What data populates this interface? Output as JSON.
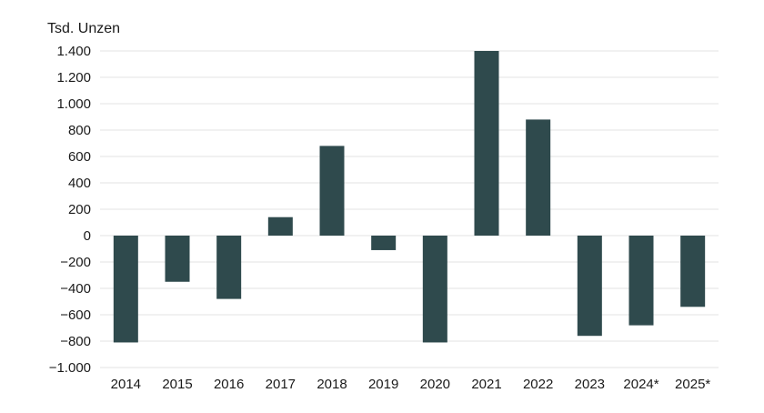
{
  "chart_data": {
    "type": "bar",
    "title": "",
    "ylabel": "Tsd. Unzen",
    "xlabel": "",
    "categories": [
      "2014",
      "2015",
      "2016",
      "2017",
      "2018",
      "2019",
      "2020",
      "2021",
      "2022",
      "2023",
      "2024*",
      "2025*"
    ],
    "values": [
      -810,
      -350,
      -480,
      140,
      680,
      -110,
      -810,
      1400,
      880,
      -760,
      -680,
      -540
    ],
    "ylim": [
      -1000,
      1400
    ],
    "yticks": [
      1400,
      1200,
      1000,
      800,
      600,
      400,
      200,
      0,
      -200,
      -400,
      -600,
      -800,
      -1000
    ],
    "ytick_labels": [
      "1.400",
      "1.200",
      "1.000",
      "800",
      "600",
      "400",
      "200",
      "0",
      "−200",
      "−400",
      "−600",
      "−800",
      "−1.000"
    ],
    "grid": true,
    "legend": "none",
    "bar_color": "#2f4a4d"
  }
}
